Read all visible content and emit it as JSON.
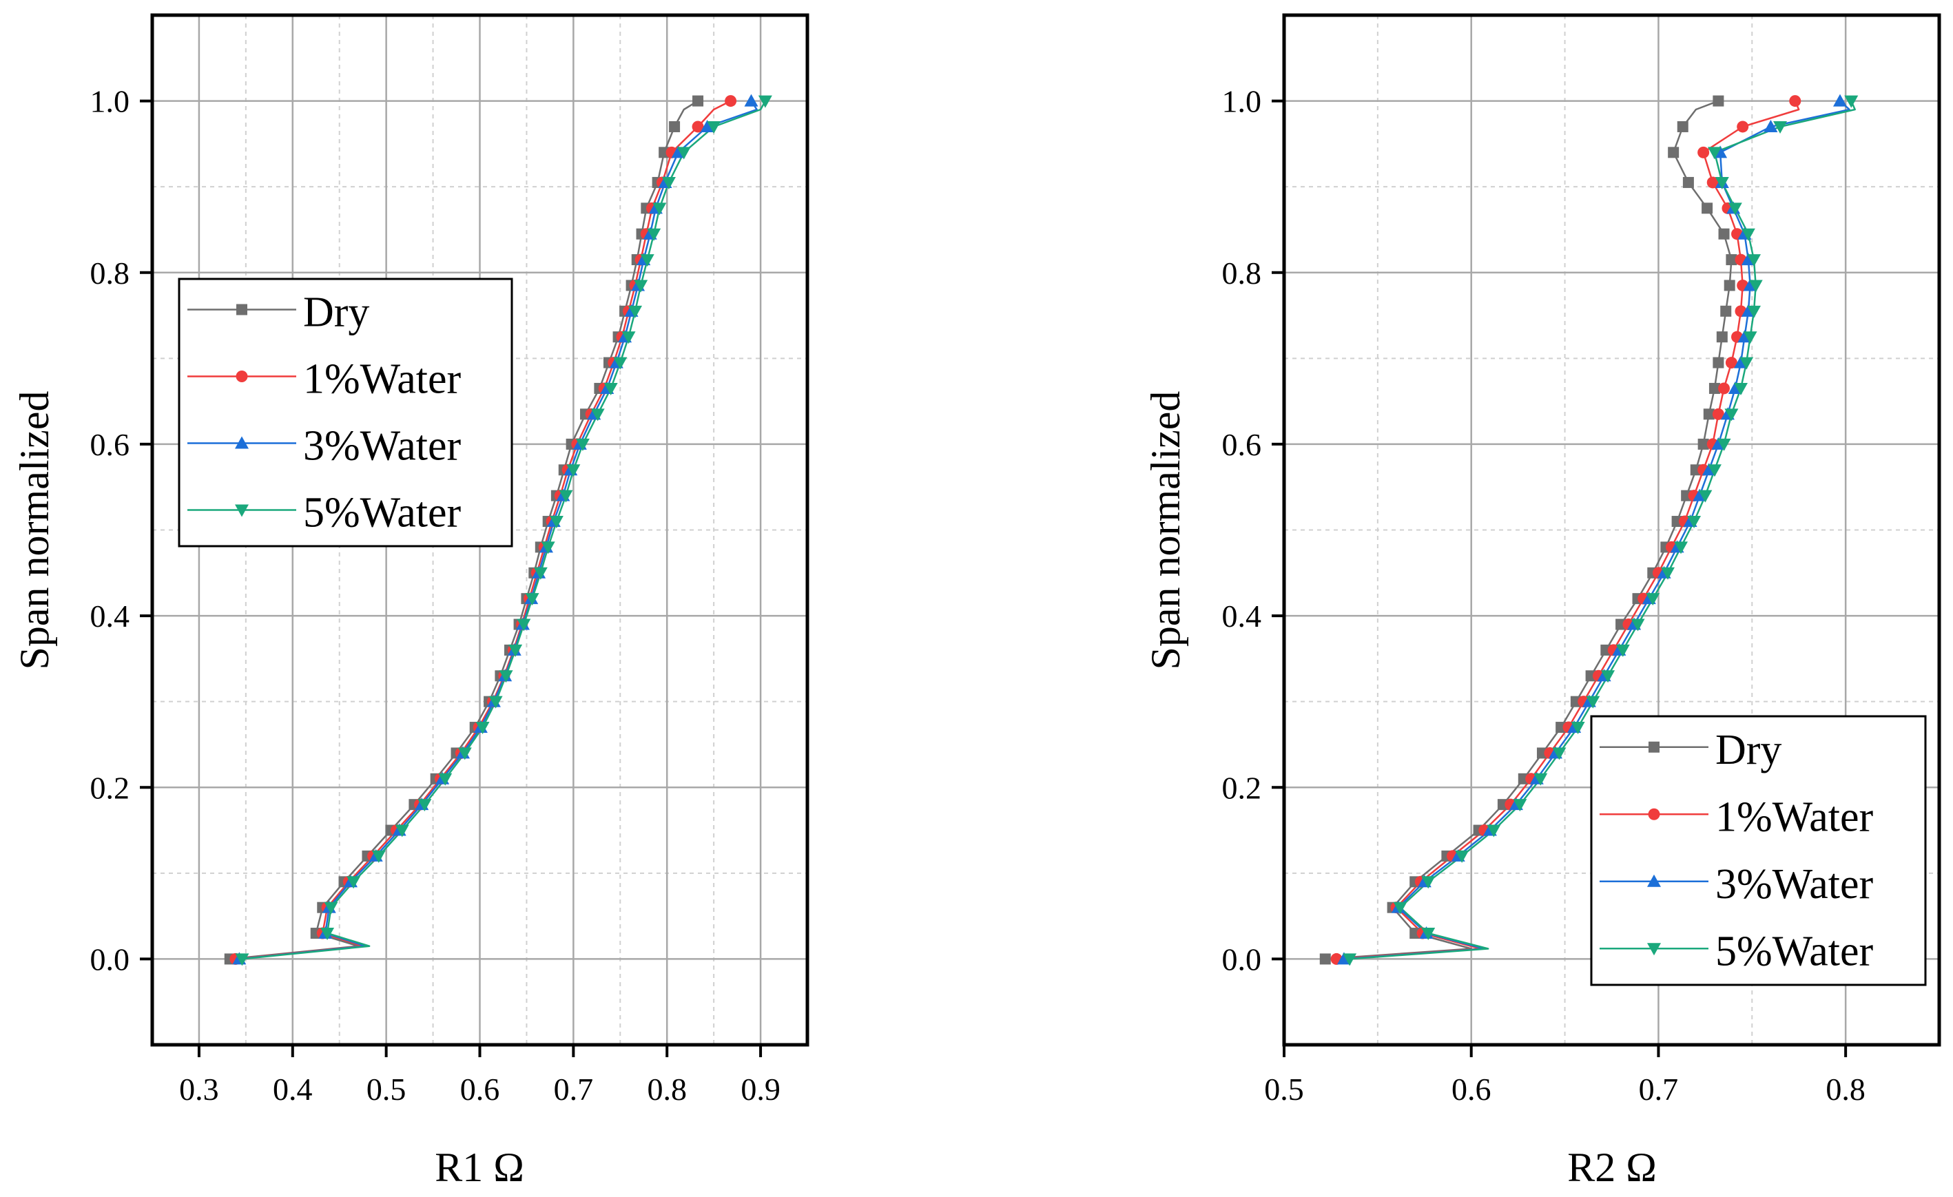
{
  "chart_data": [
    {
      "type": "line",
      "xlabel": "R1 Ω",
      "ylabel": "Span normalized",
      "xlim": [
        0.25,
        0.95
      ],
      "ylim": [
        -0.1,
        1.1
      ],
      "xticks": [
        0.3,
        0.4,
        0.5,
        0.6,
        0.7,
        0.8,
        0.9
      ],
      "xtick_labels": [
        "0.3",
        "0.4",
        "0.5",
        "0.6",
        "0.7",
        "0.8",
        "0.9"
      ],
      "yticks": [
        0.0,
        0.2,
        0.4,
        0.6,
        0.8,
        1.0
      ],
      "ytick_labels": [
        "0.0",
        "0.2",
        "0.4",
        "0.6",
        "0.8",
        "1.0"
      ],
      "legend_position": "upper-left",
      "span": [
        0.0,
        0.03,
        0.06,
        0.09,
        0.12,
        0.15,
        0.18,
        0.21,
        0.24,
        0.27,
        0.3,
        0.33,
        0.36,
        0.39,
        0.42,
        0.45,
        0.48,
        0.51,
        0.54,
        0.57,
        0.6,
        0.635,
        0.665,
        0.695,
        0.725,
        0.755,
        0.785,
        0.815,
        0.845,
        0.875,
        0.905,
        0.94,
        0.97,
        1.0
      ],
      "curve_span": [
        0.0,
        0.015,
        0.03,
        0.06,
        0.09,
        0.12,
        0.15,
        0.18,
        0.21,
        0.24,
        0.27,
        0.3,
        0.33,
        0.36,
        0.39,
        0.42,
        0.45,
        0.48,
        0.51,
        0.54,
        0.57,
        0.6,
        0.635,
        0.665,
        0.695,
        0.725,
        0.755,
        0.785,
        0.815,
        0.845,
        0.875,
        0.905,
        0.94,
        0.97,
        0.99,
        1.0
      ],
      "series": [
        {
          "name": "Dry",
          "color": "#6e6e6e",
          "marker": "square",
          "values": [
            0.333,
            0.425,
            0.432,
            0.455,
            0.48,
            0.505,
            0.53,
            0.553,
            0.575,
            0.595,
            0.61,
            0.622,
            0.632,
            0.642,
            0.65,
            0.658,
            0.665,
            0.673,
            0.682,
            0.69,
            0.698,
            0.713,
            0.728,
            0.738,
            0.748,
            0.755,
            0.762,
            0.768,
            0.773,
            0.778,
            0.79,
            0.797,
            0.808,
            0.833
          ],
          "curve": [
            0.333,
            0.47,
            0.425,
            0.432,
            0.455,
            0.48,
            0.505,
            0.53,
            0.553,
            0.575,
            0.595,
            0.61,
            0.622,
            0.632,
            0.642,
            0.65,
            0.658,
            0.665,
            0.673,
            0.682,
            0.69,
            0.698,
            0.713,
            0.728,
            0.738,
            0.748,
            0.755,
            0.762,
            0.768,
            0.773,
            0.778,
            0.79,
            0.797,
            0.808,
            0.818,
            0.833
          ]
        },
        {
          "name": "1%Water",
          "color": "#f03c3c",
          "marker": "circle",
          "values": [
            0.339,
            0.432,
            0.437,
            0.46,
            0.486,
            0.511,
            0.536,
            0.558,
            0.58,
            0.599,
            0.614,
            0.626,
            0.636,
            0.645,
            0.653,
            0.661,
            0.669,
            0.677,
            0.686,
            0.694,
            0.704,
            0.719,
            0.733,
            0.743,
            0.752,
            0.759,
            0.766,
            0.772,
            0.778,
            0.784,
            0.795,
            0.805,
            0.833,
            0.868
          ],
          "curve": [
            0.339,
            0.475,
            0.432,
            0.437,
            0.46,
            0.486,
            0.511,
            0.536,
            0.558,
            0.58,
            0.599,
            0.614,
            0.626,
            0.636,
            0.645,
            0.653,
            0.661,
            0.669,
            0.677,
            0.686,
            0.694,
            0.704,
            0.719,
            0.733,
            0.743,
            0.752,
            0.759,
            0.766,
            0.772,
            0.778,
            0.784,
            0.795,
            0.805,
            0.833,
            0.85,
            0.868
          ]
        },
        {
          "name": "3%Water",
          "color": "#1c6fd8",
          "marker": "triangle-up",
          "values": [
            0.343,
            0.435,
            0.439,
            0.462,
            0.489,
            0.514,
            0.538,
            0.56,
            0.582,
            0.601,
            0.615,
            0.627,
            0.637,
            0.646,
            0.655,
            0.663,
            0.671,
            0.679,
            0.689,
            0.697,
            0.707,
            0.722,
            0.736,
            0.746,
            0.755,
            0.762,
            0.769,
            0.775,
            0.782,
            0.788,
            0.798,
            0.812,
            0.843,
            0.89
          ],
          "curve": [
            0.343,
            0.478,
            0.435,
            0.439,
            0.462,
            0.489,
            0.514,
            0.538,
            0.56,
            0.582,
            0.601,
            0.615,
            0.627,
            0.637,
            0.646,
            0.655,
            0.663,
            0.671,
            0.679,
            0.689,
            0.697,
            0.707,
            0.722,
            0.736,
            0.746,
            0.755,
            0.762,
            0.769,
            0.775,
            0.782,
            0.788,
            0.798,
            0.812,
            0.843,
            0.896,
            0.89
          ]
        },
        {
          "name": "5%Water",
          "color": "#1aa87c",
          "marker": "triangle-down",
          "values": [
            0.346,
            0.437,
            0.441,
            0.465,
            0.492,
            0.517,
            0.541,
            0.563,
            0.584,
            0.603,
            0.617,
            0.628,
            0.638,
            0.647,
            0.656,
            0.665,
            0.673,
            0.682,
            0.692,
            0.7,
            0.71,
            0.726,
            0.74,
            0.75,
            0.759,
            0.766,
            0.772,
            0.779,
            0.786,
            0.792,
            0.802,
            0.818,
            0.85,
            0.905
          ],
          "curve": [
            0.346,
            0.482,
            0.437,
            0.441,
            0.465,
            0.492,
            0.517,
            0.541,
            0.563,
            0.584,
            0.603,
            0.617,
            0.628,
            0.638,
            0.647,
            0.656,
            0.665,
            0.673,
            0.682,
            0.692,
            0.7,
            0.71,
            0.726,
            0.74,
            0.75,
            0.759,
            0.766,
            0.772,
            0.779,
            0.786,
            0.792,
            0.802,
            0.818,
            0.85,
            0.9,
            0.905
          ]
        }
      ]
    },
    {
      "type": "line",
      "xlabel": "R2 Ω",
      "ylabel": "Span normalized",
      "xlim": [
        0.5,
        0.85
      ],
      "ylim": [
        -0.1,
        1.1
      ],
      "xticks": [
        0.5,
        0.6,
        0.7,
        0.8
      ],
      "xtick_labels": [
        "0.5",
        "0.6",
        "0.7",
        "0.8"
      ],
      "yticks": [
        0.0,
        0.2,
        0.4,
        0.6,
        0.8,
        1.0
      ],
      "ytick_labels": [
        "0.0",
        "0.2",
        "0.4",
        "0.6",
        "0.8",
        "1.0"
      ],
      "legend_position": "lower-right",
      "span": [
        0.0,
        0.03,
        0.06,
        0.09,
        0.12,
        0.15,
        0.18,
        0.21,
        0.24,
        0.27,
        0.3,
        0.33,
        0.36,
        0.39,
        0.42,
        0.45,
        0.48,
        0.51,
        0.54,
        0.57,
        0.6,
        0.635,
        0.665,
        0.695,
        0.725,
        0.755,
        0.785,
        0.815,
        0.845,
        0.875,
        0.905,
        0.94,
        0.97,
        1.0
      ],
      "curve_span": [
        0.0,
        0.012,
        0.03,
        0.06,
        0.09,
        0.12,
        0.15,
        0.18,
        0.21,
        0.24,
        0.27,
        0.3,
        0.33,
        0.36,
        0.39,
        0.42,
        0.45,
        0.48,
        0.51,
        0.54,
        0.57,
        0.6,
        0.635,
        0.665,
        0.695,
        0.725,
        0.755,
        0.785,
        0.815,
        0.845,
        0.875,
        0.905,
        0.94,
        0.97,
        0.99,
        1.0
      ],
      "series": [
        {
          "name": "Dry",
          "color": "#6e6e6e",
          "marker": "square",
          "values": [
            0.522,
            0.57,
            0.558,
            0.57,
            0.587,
            0.604,
            0.617,
            0.628,
            0.638,
            0.648,
            0.656,
            0.664,
            0.672,
            0.68,
            0.689,
            0.697,
            0.704,
            0.71,
            0.715,
            0.72,
            0.724,
            0.727,
            0.73,
            0.732,
            0.734,
            0.736,
            0.738,
            0.739,
            0.735,
            0.726,
            0.716,
            0.708,
            0.713,
            0.732
          ],
          "curve": [
            0.522,
            0.6,
            0.57,
            0.558,
            0.57,
            0.587,
            0.604,
            0.617,
            0.628,
            0.638,
            0.648,
            0.656,
            0.664,
            0.672,
            0.68,
            0.689,
            0.697,
            0.704,
            0.71,
            0.715,
            0.72,
            0.724,
            0.727,
            0.73,
            0.732,
            0.734,
            0.736,
            0.738,
            0.739,
            0.735,
            0.726,
            0.716,
            0.708,
            0.713,
            0.72,
            0.732
          ]
        },
        {
          "name": "1%Water",
          "color": "#f03c3c",
          "marker": "circle",
          "values": [
            0.528,
            0.574,
            0.56,
            0.573,
            0.59,
            0.607,
            0.621,
            0.632,
            0.642,
            0.652,
            0.66,
            0.668,
            0.676,
            0.684,
            0.692,
            0.7,
            0.707,
            0.714,
            0.719,
            0.724,
            0.729,
            0.732,
            0.735,
            0.739,
            0.742,
            0.744,
            0.745,
            0.744,
            0.742,
            0.737,
            0.729,
            0.724,
            0.745,
            0.773
          ],
          "curve": [
            0.528,
            0.605,
            0.574,
            0.56,
            0.573,
            0.59,
            0.607,
            0.621,
            0.632,
            0.642,
            0.652,
            0.66,
            0.668,
            0.676,
            0.684,
            0.692,
            0.7,
            0.707,
            0.714,
            0.719,
            0.724,
            0.729,
            0.732,
            0.735,
            0.739,
            0.742,
            0.744,
            0.745,
            0.744,
            0.742,
            0.737,
            0.729,
            0.724,
            0.745,
            0.775,
            0.773
          ]
        },
        {
          "name": "3%Water",
          "color": "#1c6fd8",
          "marker": "triangle-up",
          "values": [
            0.532,
            0.576,
            0.561,
            0.575,
            0.593,
            0.61,
            0.624,
            0.635,
            0.645,
            0.655,
            0.663,
            0.671,
            0.679,
            0.687,
            0.695,
            0.703,
            0.71,
            0.717,
            0.722,
            0.727,
            0.732,
            0.737,
            0.741,
            0.744,
            0.746,
            0.748,
            0.749,
            0.748,
            0.746,
            0.74,
            0.734,
            0.733,
            0.76,
            0.797
          ],
          "curve": [
            0.532,
            0.607,
            0.576,
            0.561,
            0.575,
            0.593,
            0.61,
            0.624,
            0.635,
            0.645,
            0.655,
            0.663,
            0.671,
            0.679,
            0.687,
            0.695,
            0.703,
            0.71,
            0.717,
            0.722,
            0.727,
            0.732,
            0.737,
            0.741,
            0.744,
            0.746,
            0.748,
            0.749,
            0.748,
            0.746,
            0.74,
            0.734,
            0.733,
            0.76,
            0.802,
            0.797
          ]
        },
        {
          "name": "5%Water",
          "color": "#1aa87c",
          "marker": "triangle-down",
          "values": [
            0.535,
            0.577,
            0.562,
            0.577,
            0.595,
            0.612,
            0.626,
            0.637,
            0.647,
            0.657,
            0.665,
            0.673,
            0.681,
            0.689,
            0.697,
            0.705,
            0.712,
            0.719,
            0.725,
            0.73,
            0.735,
            0.739,
            0.744,
            0.747,
            0.749,
            0.751,
            0.752,
            0.751,
            0.748,
            0.741,
            0.734,
            0.73,
            0.765,
            0.803
          ],
          "curve": [
            0.535,
            0.609,
            0.577,
            0.562,
            0.577,
            0.595,
            0.612,
            0.626,
            0.637,
            0.647,
            0.657,
            0.665,
            0.673,
            0.681,
            0.689,
            0.697,
            0.705,
            0.712,
            0.719,
            0.725,
            0.73,
            0.735,
            0.739,
            0.744,
            0.747,
            0.749,
            0.751,
            0.752,
            0.751,
            0.748,
            0.741,
            0.734,
            0.73,
            0.765,
            0.805,
            0.803
          ]
        }
      ]
    }
  ]
}
